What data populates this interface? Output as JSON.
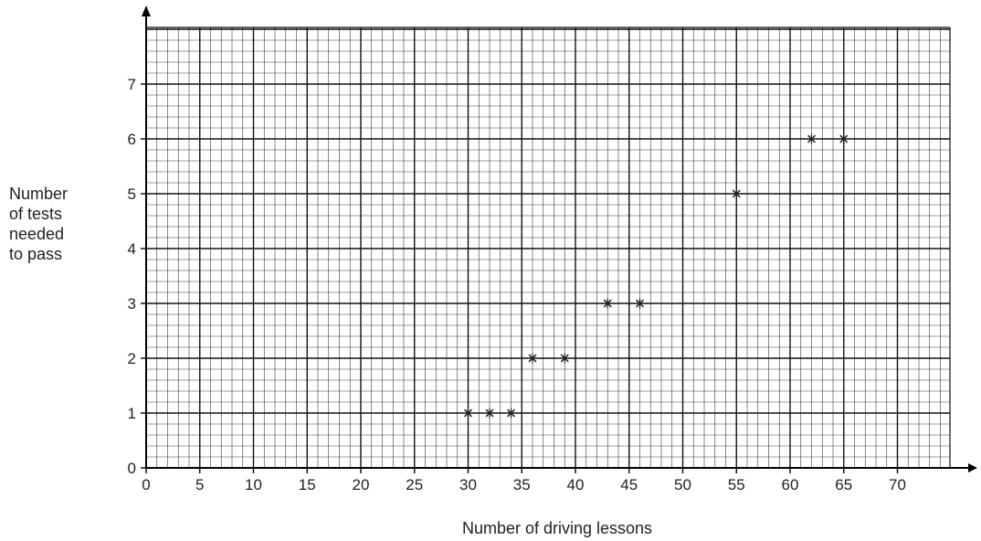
{
  "chart_data": {
    "type": "scatter",
    "title": "",
    "xlabel": "Number of driving lessons",
    "ylabel": [
      "Number",
      "of tests",
      "needed",
      "to pass"
    ],
    "xlim": [
      0,
      75
    ],
    "ylim": [
      0,
      8
    ],
    "xticks": [
      0,
      5,
      10,
      15,
      20,
      25,
      30,
      35,
      40,
      45,
      50,
      55,
      60,
      65,
      70
    ],
    "yticks": [
      0,
      1,
      2,
      3,
      4,
      5,
      6,
      7
    ],
    "grid": true,
    "marker": "asterisk",
    "points": [
      {
        "x": 30,
        "y": 1
      },
      {
        "x": 32,
        "y": 1
      },
      {
        "x": 34,
        "y": 1
      },
      {
        "x": 36,
        "y": 2
      },
      {
        "x": 39,
        "y": 2
      },
      {
        "x": 43,
        "y": 3
      },
      {
        "x": 46,
        "y": 3
      },
      {
        "x": 55,
        "y": 5
      },
      {
        "x": 62,
        "y": 6
      },
      {
        "x": 65,
        "y": 6
      }
    ]
  },
  "colors": {
    "grid_minor": "#3a3a3a",
    "grid_major": "#111111",
    "axis": "#000000",
    "marker": "#222222"
  }
}
